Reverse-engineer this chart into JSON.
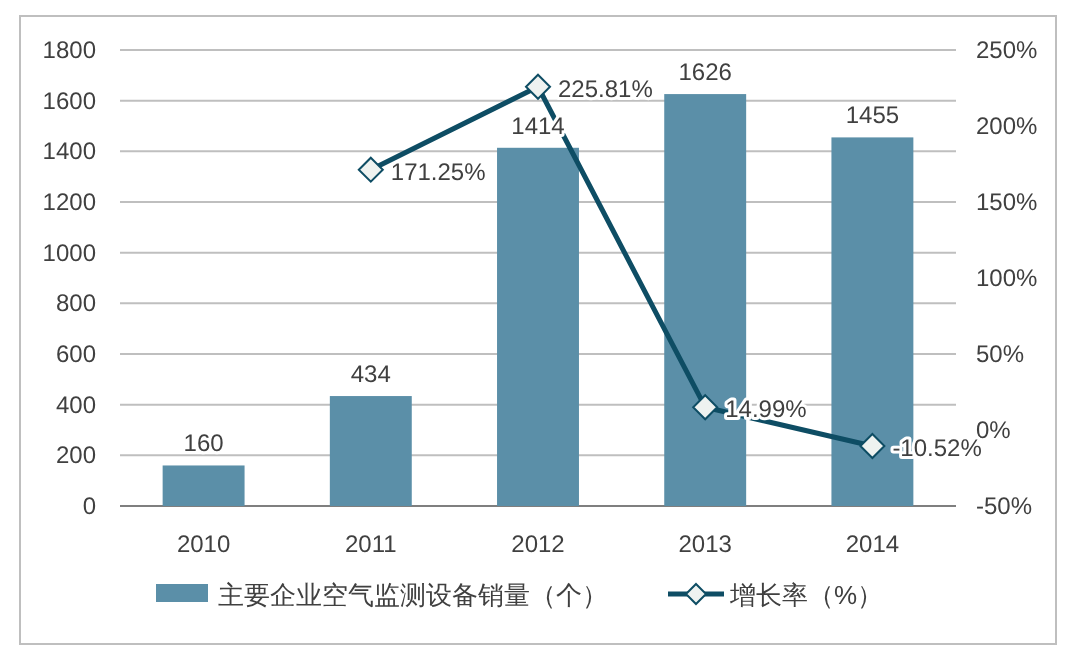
{
  "chart_data": {
    "type": "bar",
    "categories": [
      "2010",
      "2011",
      "2012",
      "2013",
      "2014"
    ],
    "series": [
      {
        "name": "主要企业空气监测设备销量（个）",
        "color": "#5b8fa8",
        "values": [
          160,
          434,
          1414,
          1626,
          1455
        ],
        "value_labels": [
          "160",
          "434",
          "1414",
          "1626",
          "1455"
        ]
      },
      {
        "name": "增长率（%）",
        "type": "line",
        "axis": "y2",
        "color": "#0e4d64",
        "marker": "diamond",
        "values": [
          null,
          171.25,
          225.81,
          14.99,
          -10.52
        ],
        "value_labels": [
          null,
          "171.25%",
          "225.81%",
          "14.99%",
          "-10.52%"
        ]
      }
    ],
    "ylim": [
      0,
      1800
    ],
    "yticks": [
      0,
      200,
      400,
      600,
      800,
      1000,
      1200,
      1400,
      1600,
      1800
    ],
    "y2lim": [
      -50,
      250
    ],
    "y2ticks": [
      {
        "value": -50,
        "label": "-50%"
      },
      {
        "value": 0,
        "label": "0%"
      },
      {
        "value": 50,
        "label": "50%"
      },
      {
        "value": 100,
        "label": "100%"
      },
      {
        "value": 150,
        "label": "150%"
      },
      {
        "value": 200,
        "label": "200%"
      },
      {
        "value": 250,
        "label": "250%"
      }
    ],
    "grid": "y",
    "legend": "bottom"
  }
}
